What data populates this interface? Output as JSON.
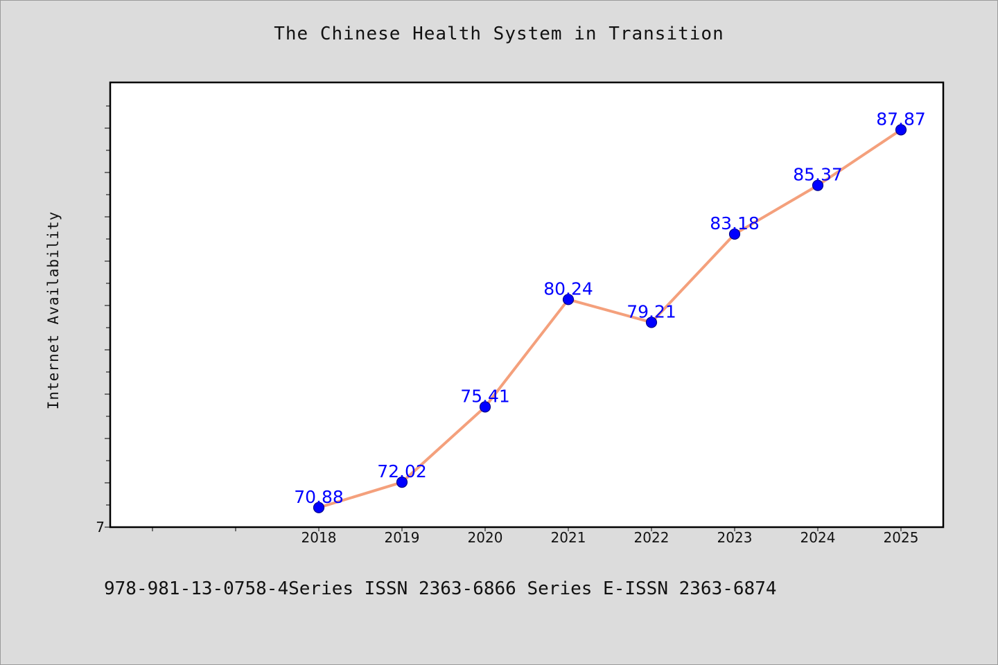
{
  "chart_data": {
    "type": "line",
    "title": "The Chinese Health System in Transition",
    "xlabel": "",
    "ylabel": "Internet Availability",
    "categories": [
      "2018",
      "2019",
      "2020",
      "2021",
      "2022",
      "2023",
      "2024",
      "2025"
    ],
    "series": [
      {
        "values": [
          70.88,
          72.02,
          75.41,
          80.24,
          79.21,
          83.18,
          85.37,
          87.87
        ],
        "labels": [
          "70.88",
          "72.02",
          "75.41",
          "80.24",
          "79.21",
          "83.18",
          "85.37",
          "87.87"
        ]
      }
    ],
    "y_tick_labels": [
      "7"
    ],
    "ylim": [
      70,
      90
    ],
    "grid": false,
    "legend": "none",
    "colors": {
      "line": "#f4a07c",
      "marker": "#0000ff",
      "data_label": "#0000ff"
    }
  },
  "footer": {
    "text": "978-981-13-0758-4Series ISSN 2363-6866 Series E-ISSN 2363-6874"
  }
}
